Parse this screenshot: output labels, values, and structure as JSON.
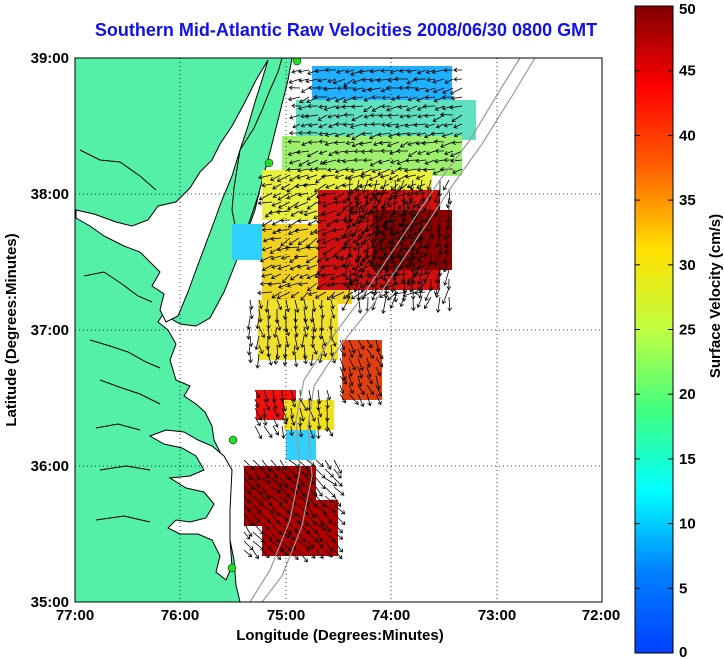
{
  "title": "Southern Mid-Atlantic Raw Velocities 2008/06/30 0800 GMT",
  "map": {
    "xlabel": "Longitude (Degrees:Minutes)",
    "ylabel": "Latitude (Degrees:Minutes)",
    "lon_ticks": [
      "77:00",
      "76:00",
      "75:00",
      "74:00",
      "73:00",
      "72:00"
    ],
    "lat_ticks": [
      "39:00",
      "38:00",
      "37:00",
      "36:00",
      "35:00"
    ],
    "lon_range": [
      -77,
      -72
    ],
    "lat_range": [
      35,
      39
    ],
    "grid": "dotted",
    "colors": {
      "land": "#55f0a8",
      "coast": "#000000",
      "isobath": "#9a9a9a",
      "station": "#22dd22",
      "vector": "#000000"
    }
  },
  "colorbar": {
    "label": "Surface Velocity (cm/s)",
    "ticks": [
      "0",
      "5",
      "10",
      "15",
      "20",
      "25",
      "30",
      "35",
      "40",
      "45",
      "50"
    ],
    "range": [
      0,
      50
    ],
    "colormap": "jet"
  }
}
